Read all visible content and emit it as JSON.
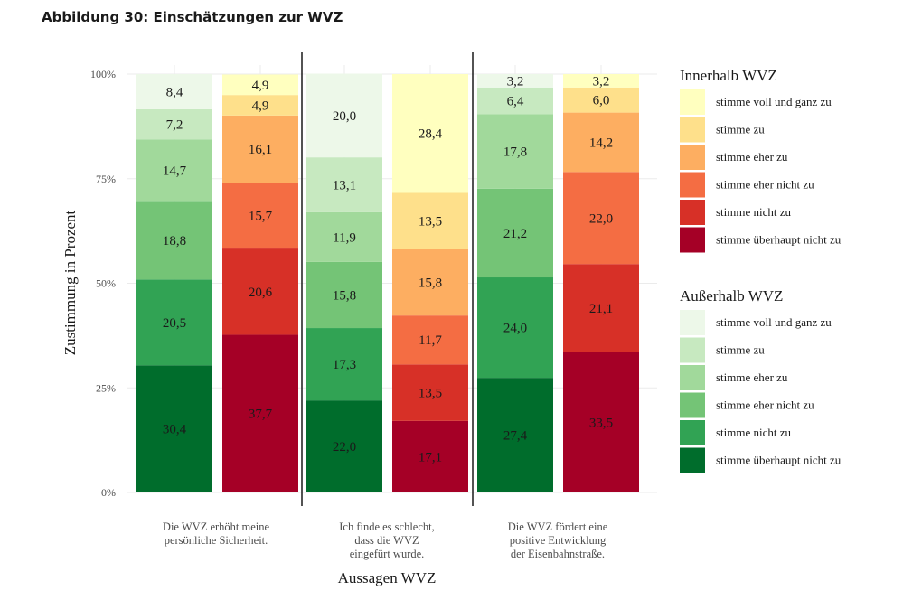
{
  "figure_title": "Abbildung 30: Einschätzungen zur WVZ",
  "chart_data": {
    "type": "bar",
    "stacked": true,
    "orientation": "vertical",
    "xlabel": "Aussagen WVZ",
    "ylabel": "Zustimmung in Prozent",
    "ylim": [
      0,
      100
    ],
    "yticks": [
      {
        "value": 0,
        "label": "0%"
      },
      {
        "value": 25,
        "label": "25%"
      },
      {
        "value": 50,
        "label": "50%"
      },
      {
        "value": 75,
        "label": "75%"
      },
      {
        "value": 100,
        "label": "100%"
      }
    ],
    "grid": true,
    "stack_order": [
      "stimme überhaupt nicht zu",
      "stimme nicht zu",
      "stimme eher nicht zu",
      "stimme eher zu",
      "stimme zu",
      "stimme voll und ganz zu"
    ],
    "legends": [
      {
        "title": "Innerhalb WVZ",
        "group": "innerhalb",
        "entries": [
          {
            "label": "stimme voll und ganz zu",
            "color": "#ffffbf"
          },
          {
            "label": "stimme zu",
            "color": "#fee08b"
          },
          {
            "label": "stimme eher zu",
            "color": "#fdae61"
          },
          {
            "label": "stimme eher nicht zu",
            "color": "#f46d43"
          },
          {
            "label": "stimme nicht zu",
            "color": "#d73027"
          },
          {
            "label": "stimme überhaupt nicht zu",
            "color": "#a50026"
          }
        ]
      },
      {
        "title": "Außerhalb WVZ",
        "group": "ausserhalb",
        "entries": [
          {
            "label": "stimme voll und ganz zu",
            "color": "#edf8e9"
          },
          {
            "label": "stimme zu",
            "color": "#c7e9c0"
          },
          {
            "label": "stimme eher zu",
            "color": "#a1d99b"
          },
          {
            "label": "stimme eher nicht zu",
            "color": "#74c476"
          },
          {
            "label": "stimme nicht zu",
            "color": "#31a354"
          },
          {
            "label": "stimme überhaupt nicht zu",
            "color": "#006d2c"
          }
        ]
      }
    ],
    "categories": [
      {
        "label": [
          "Die WVZ erhöht meine",
          "persönliche Sicherheit."
        ],
        "bars": [
          {
            "group": "ausserhalb",
            "values": [
              30.4,
              20.5,
              18.8,
              14.7,
              7.2,
              8.4
            ],
            "labels": [
              "30,4",
              "20,5",
              "18,8",
              "14,7",
              "7,2",
              "8,4"
            ]
          },
          {
            "group": "innerhalb",
            "values": [
              37.7,
              20.6,
              15.7,
              16.1,
              4.9,
              4.9
            ],
            "labels": [
              "37,7",
              "20,6",
              "15,7",
              "16,1",
              "4,9",
              "4,9"
            ]
          }
        ]
      },
      {
        "label": [
          "Ich finde es schlecht,",
          "dass die WVZ",
          "eingefürt wurde."
        ],
        "bars": [
          {
            "group": "ausserhalb",
            "values": [
              22.0,
              17.3,
              15.8,
              11.9,
              13.1,
              20.0
            ],
            "labels": [
              "22,0",
              "17,3",
              "15,8",
              "11,9",
              "13,1",
              "20,0"
            ]
          },
          {
            "group": "innerhalb",
            "values": [
              17.1,
              13.5,
              11.7,
              15.8,
              13.5,
              28.4
            ],
            "labels": [
              "17,1",
              "13,5",
              "11,7",
              "15,8",
              "13,5",
              "28,4"
            ]
          }
        ]
      },
      {
        "label": [
          "Die WVZ fördert eine",
          "positive Entwicklung",
          "der Eisenbahnstraße."
        ],
        "bars": [
          {
            "group": "ausserhalb",
            "values": [
              27.4,
              24.0,
              21.2,
              17.8,
              6.4,
              3.2
            ],
            "labels": [
              "27,4",
              "24,0",
              "21,2",
              "17,8",
              "6,4",
              "3,2"
            ]
          },
          {
            "group": "innerhalb",
            "values": [
              33.5,
              21.1,
              22.0,
              14.2,
              6.0,
              3.2
            ],
            "labels": [
              "33,5",
              "21,1",
              "22,0",
              "14,2",
              "6,0",
              "3,2"
            ]
          }
        ]
      }
    ]
  }
}
